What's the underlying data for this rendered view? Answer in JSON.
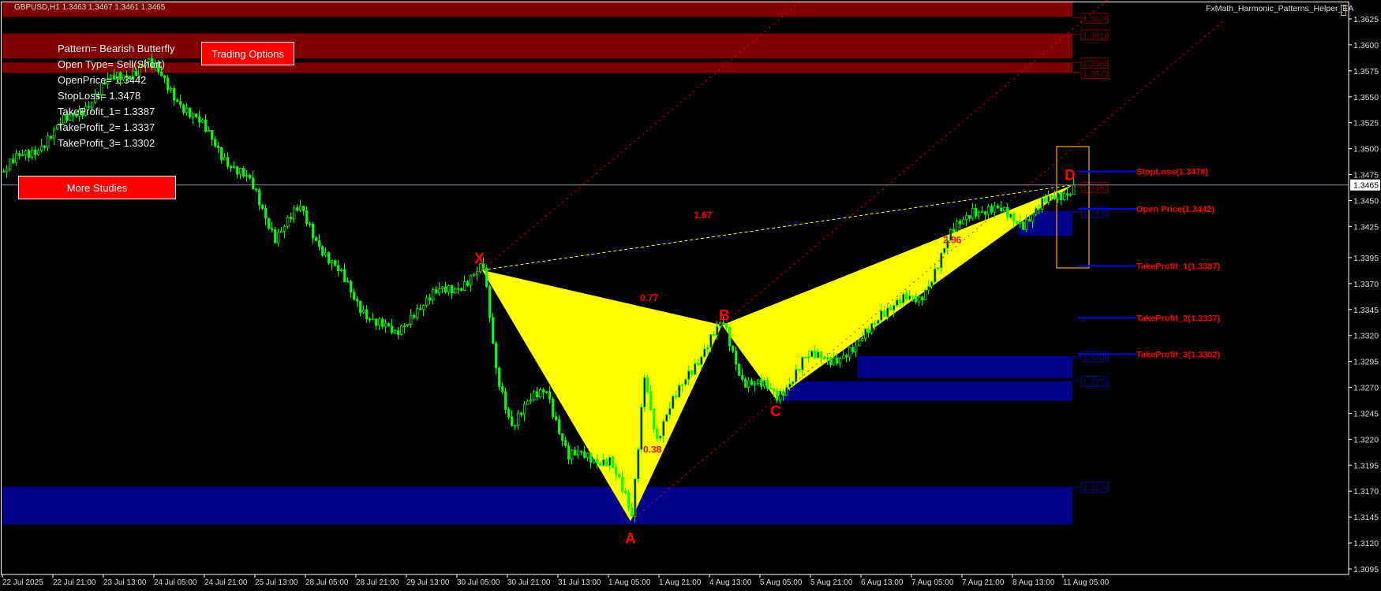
{
  "header": {
    "symbol_info": "GBPUSD,H1  1.3463 1.3467 1.3461 1.3465",
    "ea_name": "FxMath_Harmonic_Patterns_Helper_EA"
  },
  "info_panel": {
    "lines": [
      "Pattern= Bearish Butterfly",
      "Open Type= Sell(Short)",
      "OpenPrice= 1.3442",
      "StopLoss= 1.3478",
      "TakeProfit_1= 1.3387",
      "TakeProfit_2= 1.3337",
      "TakeProfit_3= 1.3302"
    ]
  },
  "buttons": {
    "trading_options": "Trading Options",
    "more_studies": "More Studies"
  },
  "colors": {
    "background": "#000000",
    "candle": "#00ff00",
    "pattern_fill": "#ffff00",
    "supply_zone": "#800000",
    "demand_zone": "#00008b",
    "level_line": "#0000ff",
    "level_label": "#ff0000",
    "d_box": "#ffa500"
  },
  "chart_data": {
    "type": "candlestick",
    "symbol": "GBPUSD",
    "timeframe": "H1",
    "ylim": [
      1.3085,
      1.3645
    ],
    "y_ticks": [
      "1.3625",
      "1.3600",
      "1.3575",
      "1.3550",
      "1.3525",
      "1.3500",
      "1.3475",
      "1.3450",
      "1.3425",
      "1.3395",
      "1.3370",
      "1.3345",
      "1.3320",
      "1.3295",
      "1.3270",
      "1.3245",
      "1.3220",
      "1.3195",
      "1.3170",
      "1.3145",
      "1.3120",
      "1.3095"
    ],
    "current_price": "1.3465",
    "x_ticks": [
      "22 Jul 2025",
      "22 Jul 21:00",
      "23 Jul 13:00",
      "24 Jul 05:00",
      "24 Jul 21:00",
      "25 Jul 13:00",
      "28 Jul 05:00",
      "28 Jul 21:00",
      "29 Jul 13:00",
      "30 Jul 05:00",
      "30 Jul 21:00",
      "31 Jul 13:00",
      "1 Aug 05:00",
      "1 Aug 21:00",
      "4 Aug 13:00",
      "5 Aug 05:00",
      "5 Aug 21:00",
      "6 Aug 13:00",
      "7 Aug 05:00",
      "7 Aug 21:00",
      "8 Aug 13:00",
      "11 Aug 05:00"
    ],
    "approx_price_path": [
      [
        "22 Jul 05:00",
        1.3478
      ],
      [
        "22 Jul 21:00",
        1.3515
      ],
      [
        "23 Jul 13:00",
        1.356
      ],
      [
        "24 Jul 02:00",
        1.3584
      ],
      [
        "24 Jul 12:00",
        1.355
      ],
      [
        "24 Jul 21:00",
        1.3515
      ],
      [
        "25 Jul 11:00",
        1.3465
      ],
      [
        "25 Jul 19:00",
        1.3418
      ],
      [
        "28 Jul 03:00",
        1.344
      ],
      [
        "28 Jul 20:00",
        1.3355
      ],
      [
        "29 Jul 09:00",
        1.3317
      ],
      [
        "29 Jul 15:00",
        1.3346
      ],
      [
        "30 Jul 13:00",
        1.3383
      ],
      [
        "30 Jul 17:00",
        1.3287
      ],
      [
        "30 Jul 22:00",
        1.3236
      ],
      [
        "31 Jul 09:00",
        1.327
      ],
      [
        "31 Jul 16:00",
        1.3202
      ],
      [
        "1 Aug 05:00",
        1.3202
      ],
      [
        "1 Aug 12:00",
        1.3143
      ],
      [
        "1 Aug 16:00",
        1.3287
      ],
      [
        "1 Aug 20:00",
        1.3219
      ],
      [
        "4 Aug 06:00",
        1.3287
      ],
      [
        "4 Aug 17:00",
        1.333
      ],
      [
        "4 Aug 23:00",
        1.328
      ],
      [
        "5 Aug 10:00",
        1.3261
      ],
      [
        "5 Aug 18:00",
        1.3295
      ],
      [
        "6 Aug 11:00",
        1.3304
      ],
      [
        "6 Aug 19:00",
        1.3346
      ],
      [
        "7 Aug 07:00",
        1.3355
      ],
      [
        "7 Aug 17:00",
        1.3414
      ],
      [
        "8 Aug 00:00",
        1.3444
      ],
      [
        "8 Aug 16:00",
        1.3431
      ],
      [
        "11 Aug 08:00",
        1.3465
      ]
    ],
    "pattern": {
      "name": "Bearish Butterfly",
      "points": [
        {
          "label": "X",
          "time": "30 Jul 13:00",
          "price": 1.3383
        },
        {
          "label": "A",
          "time": "1 Aug 12:00",
          "price": 1.3141
        },
        {
          "label": "B",
          "time": "4 Aug 17:00",
          "price": 1.333
        },
        {
          "label": "C",
          "time": "5 Aug 10:00",
          "price": 1.3259
        },
        {
          "label": "D",
          "time": "11 Aug 08:00",
          "price": 1.3465
        }
      ],
      "ratios": [
        {
          "text": "0.77",
          "time": "1 Aug 15:00",
          "price": 1.3353
        },
        {
          "text": "0.38",
          "time": "1 Aug 16:00",
          "price": 1.3207
        },
        {
          "text": "1.67",
          "time": "4 Aug 08:00",
          "price": 1.3433
        },
        {
          "text": "2.96",
          "time": "7 Aug 15:00",
          "price": 1.3409
        }
      ]
    },
    "zones": [
      {
        "type": "supply",
        "top": 1.3642,
        "bottom": 1.3627,
        "start": "22 Jul 05:00",
        "end": "11 Aug 08:00"
      },
      {
        "type": "supply",
        "top": 1.3611,
        "bottom": 1.3587,
        "start": "22 Jul 05:00",
        "end": "11 Aug 08:00"
      },
      {
        "type": "supply",
        "top": 1.3583,
        "bottom": 1.3573,
        "start": "22 Jul 05:00",
        "end": "11 Aug 08:00"
      },
      {
        "type": "demand",
        "top": 1.344,
        "bottom": 1.3416,
        "start": "8 Aug 15:00",
        "end": "11 Aug 08:00"
      },
      {
        "type": "demand",
        "top": 1.33,
        "bottom": 1.3279,
        "start": "6 Aug 12:00",
        "end": "11 Aug 08:00"
      },
      {
        "type": "demand",
        "top": 1.3276,
        "bottom": 1.3257,
        "start": "5 Aug 10:00",
        "end": "11 Aug 08:00"
      },
      {
        "type": "demand",
        "top": 1.3174,
        "bottom": 1.3138,
        "start": "22 Jul 05:00",
        "end": "11 Aug 08:00"
      }
    ],
    "zone_labels": [
      {
        "type": "supply",
        "text": "1.3626",
        "price": 1.3626
      },
      {
        "type": "supply",
        "text": "1.3610",
        "price": 1.361
      },
      {
        "type": "supply",
        "text": "1.3583",
        "price": 1.3583
      },
      {
        "type": "supply",
        "text": "1.3573",
        "price": 1.3573
      },
      {
        "type": "supply",
        "text": "1.3463",
        "price": 1.3463
      },
      {
        "type": "demand",
        "text": "1.3439",
        "price": 1.3439
      },
      {
        "type": "demand",
        "text": "1.3300",
        "price": 1.33
      },
      {
        "type": "demand",
        "text": "1.3276",
        "price": 1.3276
      },
      {
        "type": "demand",
        "text": "1.3174",
        "price": 1.3174
      }
    ],
    "levels": [
      {
        "text": "StopLoss(1.3478)",
        "price": 1.3478
      },
      {
        "text": "Open Price(1.3442)",
        "price": 1.3442
      },
      {
        "text": "TakeProfit_1(1.3387)",
        "price": 1.3387
      },
      {
        "text": "TakeProfit_2(1.3337)",
        "price": 1.3337
      },
      {
        "text": "TakeProfit_3(1.3302)",
        "price": 1.3302
      }
    ]
  }
}
